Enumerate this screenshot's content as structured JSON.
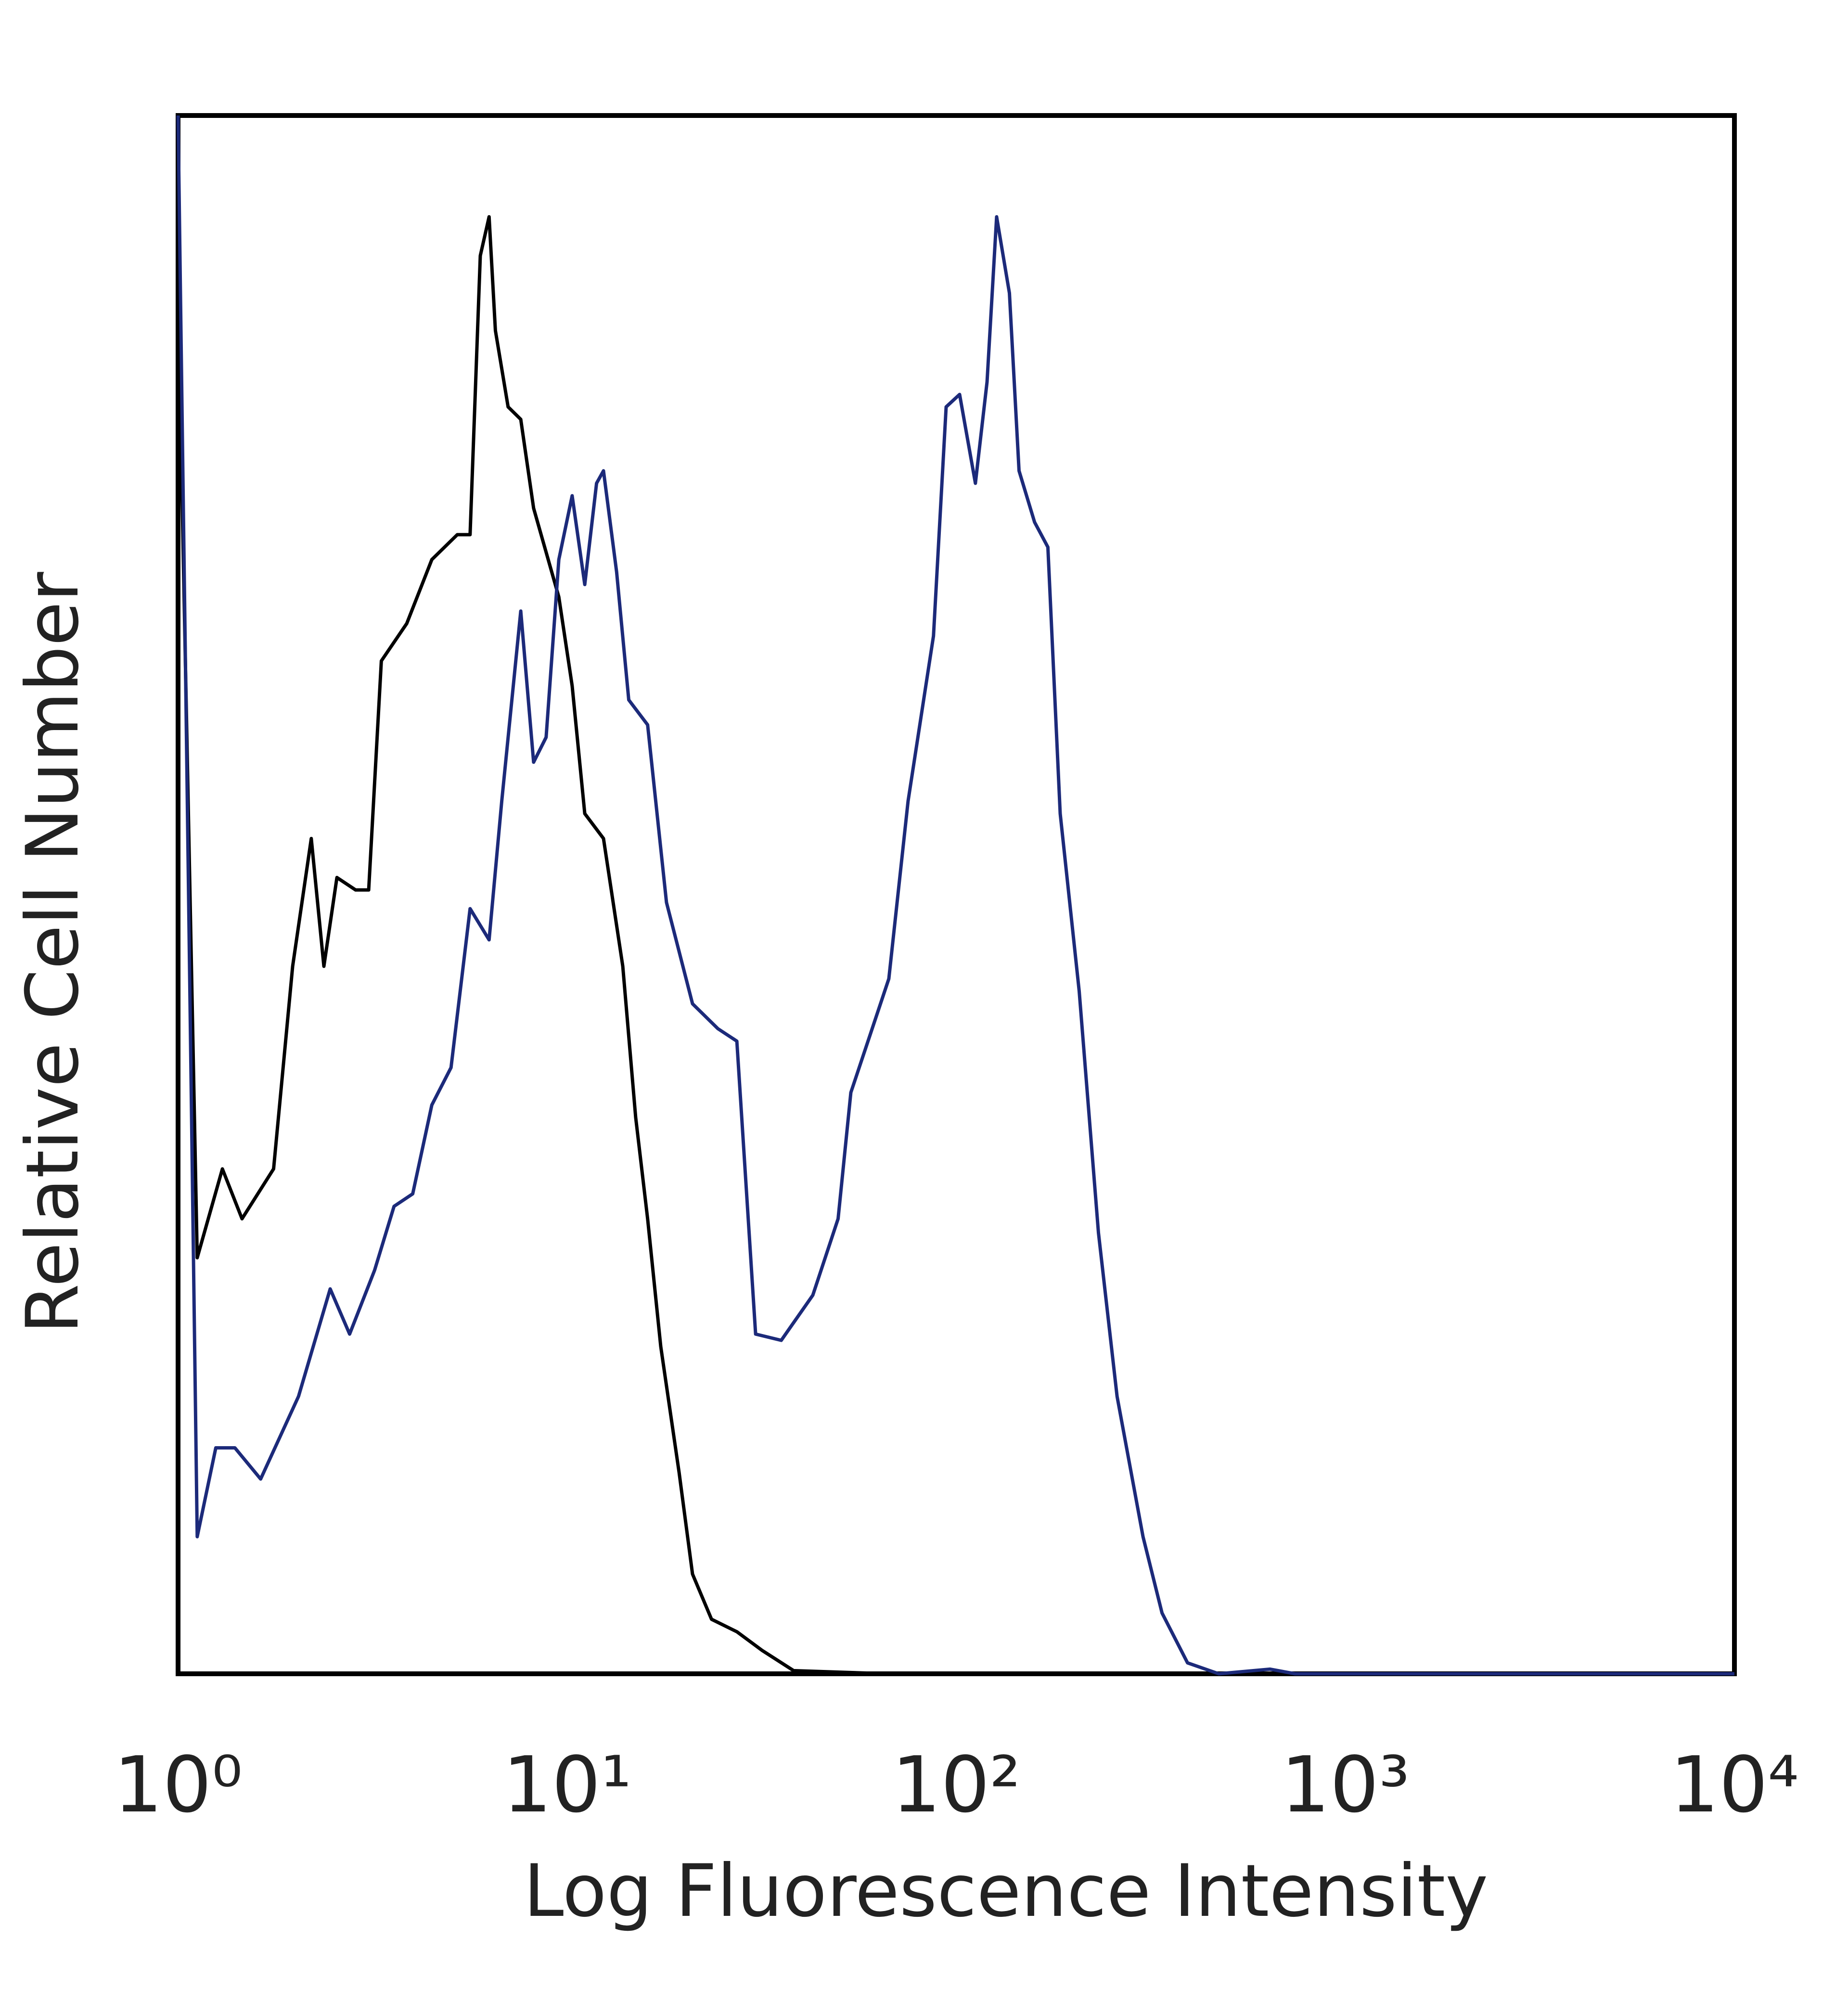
{
  "chart_data": {
    "type": "line",
    "xlabel": "Log Fluorescence Intensity",
    "ylabel": "Relative Cell Number",
    "xscale": "log",
    "xlim": [
      1,
      10000
    ],
    "xticks": [
      {
        "value": 1,
        "label": "10⁰"
      },
      {
        "value": 10,
        "label": "10¹"
      },
      {
        "value": 100,
        "label": "10²"
      },
      {
        "value": 1000,
        "label": "10³"
      },
      {
        "value": 10000,
        "label": "10⁴"
      }
    ],
    "ylim": [
      0,
      100
    ],
    "grid": false,
    "series": [
      {
        "color": "#000000",
        "x": [
          1,
          1.12,
          1.3,
          1.46,
          1.76,
          1.97,
          2.2,
          2.37,
          2.56,
          2.86,
          3.09,
          3.33,
          3.87,
          4.49,
          5.22,
          5.63,
          5.98,
          6.3,
          6.54,
          7.05,
          7.6,
          8.2,
          9.52,
          10.3,
          11.1,
          12.4,
          13.9,
          15,
          16.1,
          17.4,
          19.4,
          21,
          23.5,
          27.3,
          31.7,
          38.2,
          67.1,
          10000
        ],
        "values": [
          88.6,
          26.7,
          32.4,
          29.2,
          32.4,
          45.4,
          53.6,
          45.4,
          51.1,
          50.3,
          50.3,
          65,
          67.4,
          71.5,
          73.1,
          73.1,
          91,
          93.5,
          86.2,
          81.3,
          80.5,
          74.8,
          69.1,
          63.4,
          55.2,
          53.6,
          45.4,
          35.7,
          29.2,
          21,
          12.9,
          6.4,
          3.5,
          2.7,
          1.5,
          0.2,
          0,
          0
        ]
      },
      {
        "color": "#1c2a7a",
        "x": [
          1,
          1.12,
          1.25,
          1.4,
          1.63,
          2.04,
          2.46,
          2.76,
          3.2,
          3.59,
          4.01,
          4.49,
          5.03,
          5.63,
          6.3,
          6.79,
          7.6,
          8.2,
          8.83,
          9.52,
          10.3,
          11.1,
          11.9,
          12.4,
          13.4,
          14.4,
          16.1,
          18,
          21,
          24.4,
          27.3,
          30.5,
          35.5,
          42.8,
          49.7,
          53.6,
          67.1,
          75.2,
          87.4,
          94.2,
          102,
          112,
          120,
          127,
          137,
          145,
          159,
          172,
          185,
          207,
          232,
          259,
          302,
          338,
          393,
          473,
          640,
          743,
          10000
        ],
        "values": [
          100,
          8.8,
          14.5,
          14.5,
          12.5,
          17.8,
          24.7,
          21.8,
          25.9,
          30,
          30.8,
          36.5,
          38.9,
          49.1,
          47.1,
          56,
          68.2,
          58.5,
          60.1,
          71.5,
          75.6,
          69.9,
          76.4,
          77.2,
          70.7,
          62.5,
          60.9,
          49.5,
          43,
          41.4,
          40.6,
          21.8,
          21.4,
          24.3,
          29.2,
          37.3,
          44.6,
          56,
          66.6,
          81.3,
          82.1,
          76.4,
          82.9,
          93.5,
          88.6,
          77.2,
          73.9,
          72.3,
          55.2,
          43.8,
          28.3,
          17.8,
          8.8,
          3.9,
          0.7,
          0,
          0.3,
          0,
          0
        ]
      }
    ]
  }
}
